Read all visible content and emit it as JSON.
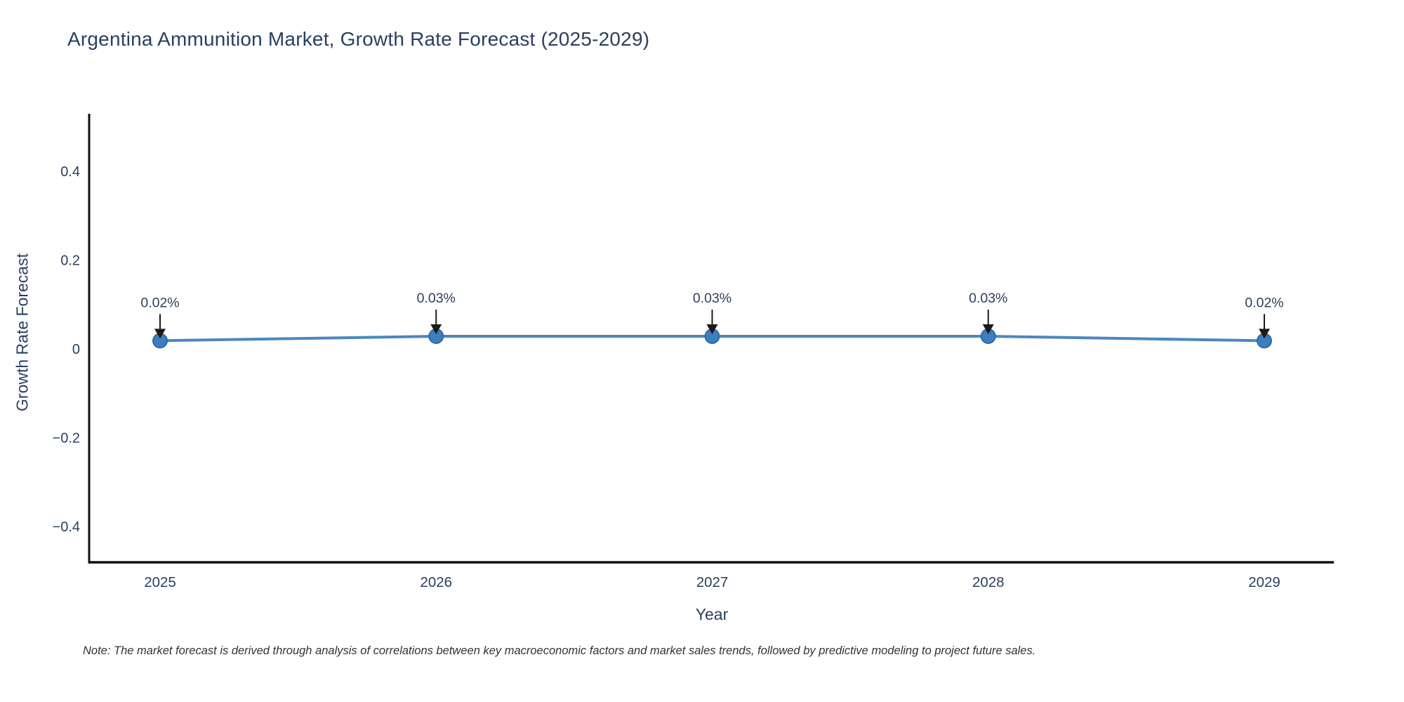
{
  "title": "Argentina Ammunition Market, Growth Rate Forecast (2025-2029)",
  "note": "Note: The market forecast is derived through analysis of correlations between key macroeconomic factors and market sales trends, followed by predictive modeling to project future sales.",
  "colors": {
    "text": "#2a3f5f",
    "tick_text": "#2a3f5f",
    "line": "#4d87bd",
    "marker_fill": "#3c7ec0",
    "marker_edge": "#2e6ca8",
    "axis_line": "#111111",
    "arrow": "#1a1a1a",
    "note_text": "#333333",
    "background": "#ffffff"
  },
  "chart_data": {
    "type": "line",
    "title": "Argentina Ammunition Market, Growth Rate Forecast (2025-2029)",
    "xlabel": "Year",
    "ylabel": "Growth Rate Forecast",
    "categories": [
      "2025",
      "2026",
      "2027",
      "2028",
      "2029"
    ],
    "series": [
      {
        "name": "Growth Rate Forecast",
        "values": [
          0.02,
          0.03,
          0.03,
          0.03,
          0.02
        ]
      }
    ],
    "point_labels": [
      "0.02%",
      "0.03%",
      "0.03%",
      "0.03%",
      "0.02%"
    ],
    "ytick_values": [
      0.4,
      0.2,
      0,
      -0.2,
      -0.4
    ],
    "ytick_labels": [
      "0.4",
      "0.2",
      "0",
      "−0.2",
      "−0.4"
    ],
    "ylim": [
      -0.49,
      0.53
    ],
    "grid": false,
    "legend": false,
    "marker_style": "circle",
    "annotations_arrow": true
  }
}
